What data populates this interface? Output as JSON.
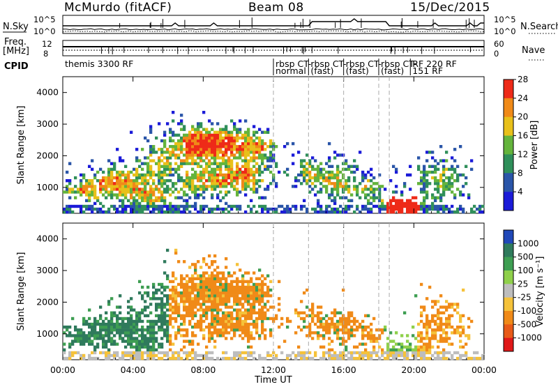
{
  "header": {
    "station": "McMurdo (fitACF)",
    "beam": "Beam 08",
    "date": "15/Dec/2015"
  },
  "aux": {
    "nsky_label": "N.Sky",
    "nsky_ticks": [
      "10^5",
      "10^0"
    ],
    "nsearch_label": "N.Search",
    "nsearch_ticks": [
      "10^5",
      "10^0"
    ],
    "freq_label_1": "Freq.",
    "freq_label_2": "[MHz]",
    "freq_ticks": [
      "12",
      "8"
    ],
    "nave_label": "Nave",
    "nave_ticks": [
      "60",
      "0"
    ],
    "cpid_label": "CPID"
  },
  "cpid_segments": [
    {
      "line1": "themis 3300 RF",
      "line2": "",
      "t": 0.0
    },
    {
      "line1": "rbsp CT-",
      "line2": "normal",
      "t": 12.0
    },
    {
      "line1": "rbsp CT-",
      "line2": "(fast)",
      "t": 14.0
    },
    {
      "line1": "rbsp CT-",
      "line2": "(fast)",
      "t": 16.0
    },
    {
      "line1": "rbsp CT-",
      "line2": "(fast)",
      "t": 18.0
    },
    {
      "line1": "RF 220 RF",
      "line2": "151 RF",
      "t": 19.8
    }
  ],
  "chart_data": [
    {
      "type": "heatmap",
      "title": "",
      "xlabel": "",
      "ylabel": "Slant Range [km]",
      "xlim": [
        0,
        24
      ],
      "ylim": [
        180,
        4500
      ],
      "x_ticks": [
        "00:00",
        "04:00",
        "08:00",
        "12:00",
        "16:00",
        "20:00",
        "00:00"
      ],
      "y_ticks": [
        1000,
        2000,
        3000,
        4000
      ],
      "colorbar_label": "Power [dB]",
      "colorbar_ticks": [
        "4",
        "8",
        "12",
        "16",
        "20",
        "24",
        "28"
      ],
      "colors": [
        "#1b1bd8",
        "#2a55a8",
        "#2f8f5a",
        "#64b43c",
        "#e8c01a",
        "#f08a18",
        "#ee2a18"
      ],
      "grid": false
    },
    {
      "type": "heatmap",
      "title": "",
      "xlabel": "Time UT",
      "ylabel": "Slant Range [km]",
      "xlim": [
        0,
        24
      ],
      "ylim": [
        180,
        4500
      ],
      "x_ticks": [
        "00:00",
        "04:00",
        "08:00",
        "12:00",
        "16:00",
        "20:00",
        "00:00"
      ],
      "y_ticks": [
        1000,
        2000,
        3000,
        4000
      ],
      "colorbar_label": "Velocity [m s⁻¹]",
      "colorbar_ticks": [
        "1000",
        "500",
        "100",
        "25",
        "-25",
        "-100",
        "-500",
        "-1000"
      ],
      "colors": [
        "#2048b8",
        "#2f7a5c",
        "#3e9e52",
        "#8fd04a",
        "#bdbdbd",
        "#f5c23a",
        "#f08a18",
        "#e85a18",
        "#e01818"
      ],
      "grid": false
    }
  ]
}
